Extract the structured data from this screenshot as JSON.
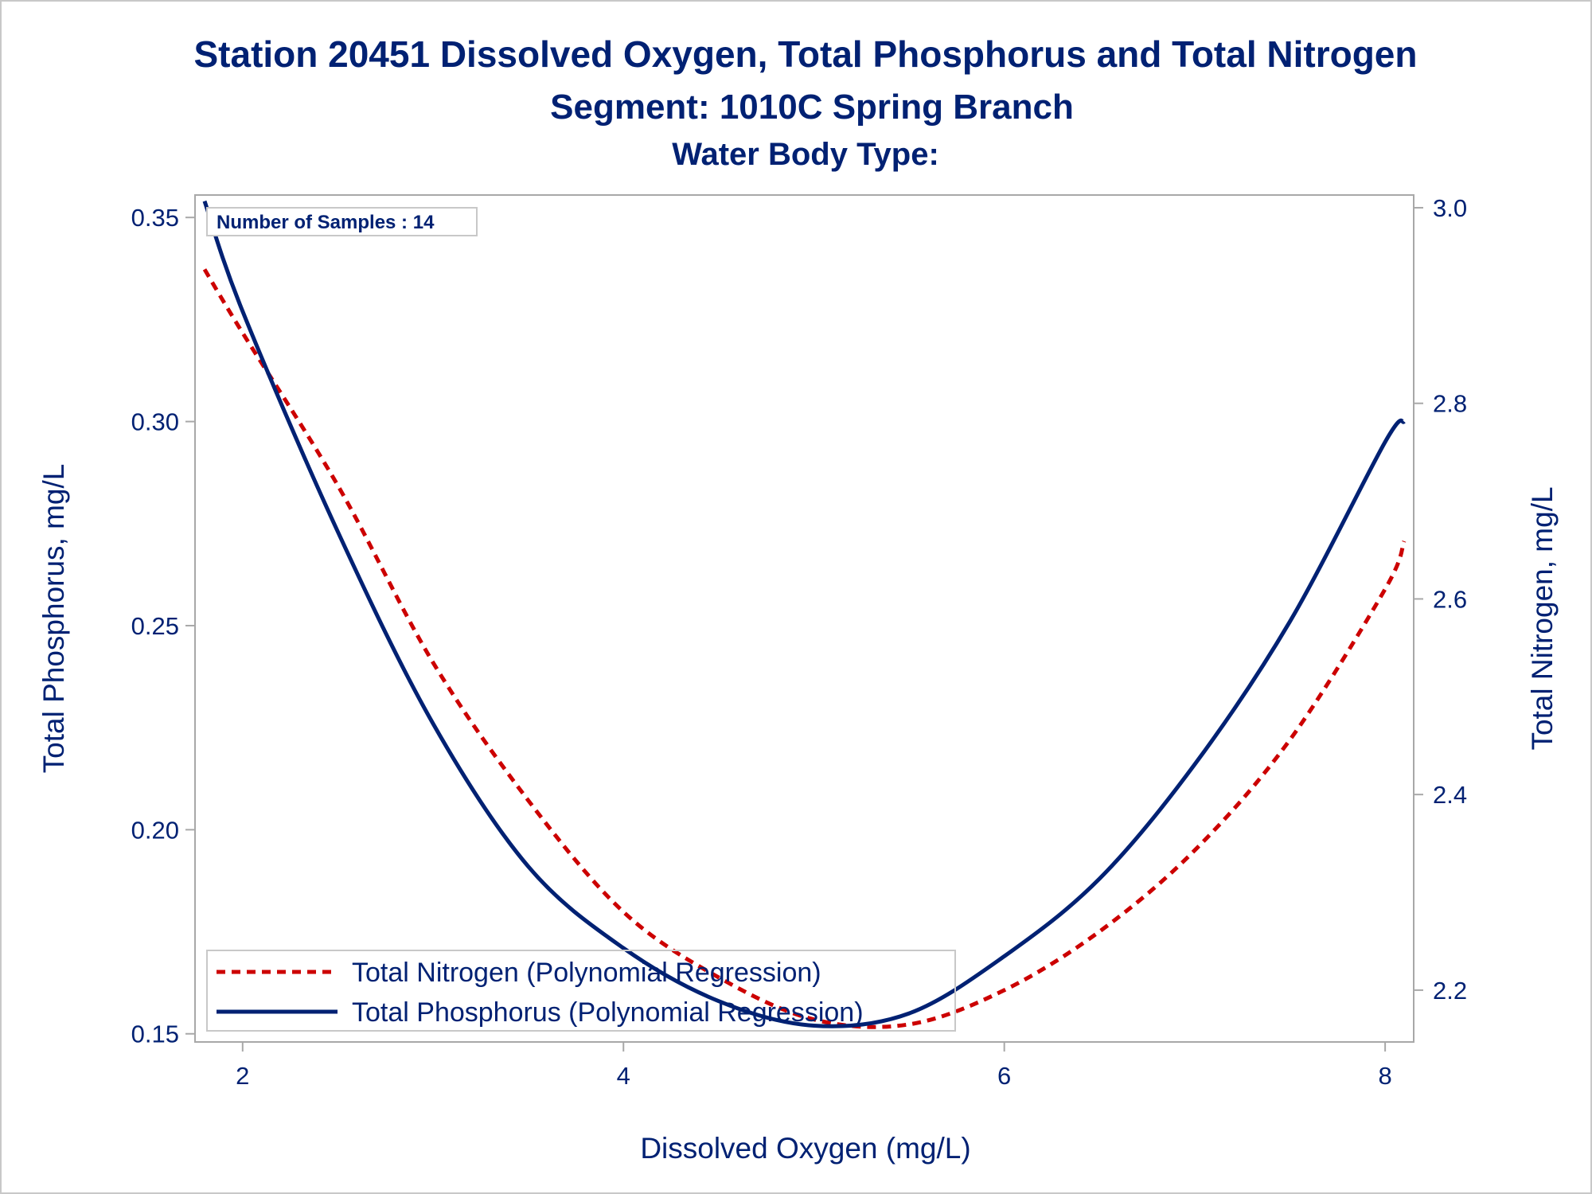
{
  "chart_data": {
    "type": "line",
    "title": "Station 20451  Dissolved Oxygen, Total Phosphorus and Total Nitrogen",
    "subtitle": "Segment: 1010C  Spring Branch",
    "subtitle2": "Water Body Type:",
    "xlabel": "Dissolved Oxygen (mg/L)",
    "ylabel": "Total Phosphorus, mg/L",
    "y2label": "Total Nitrogen, mg/L",
    "xlim": [
      1.75,
      8.15
    ],
    "ylim": [
      0.148,
      0.3555
    ],
    "y2lim": [
      2.147,
      3.013
    ],
    "xticks": [
      2,
      4,
      6,
      8
    ],
    "xtick_labels": [
      "2",
      "4",
      "6",
      "8"
    ],
    "yticks": [
      0.15,
      0.2,
      0.25,
      0.3,
      0.35
    ],
    "ytick_labels": [
      "0.15",
      "0.20",
      "0.25",
      "0.30",
      "0.35"
    ],
    "y2ticks": [
      2.2,
      2.4,
      2.6,
      2.8,
      3.0
    ],
    "y2tick_labels": [
      "2.2",
      "2.4",
      "2.6",
      "2.8",
      "3.0"
    ],
    "annotation": "Number of Samples : 14",
    "legend_position": "bottom-left inside",
    "grid": false,
    "series": [
      {
        "name": "Total Nitrogen (Polynomial Regression)",
        "axis": "right",
        "style": "dashed",
        "color": "#cc0000",
        "x": [
          1.8,
          2.0,
          2.5,
          3.0,
          3.5,
          4.0,
          4.5,
          5.0,
          5.5,
          6.0,
          6.5,
          7.0,
          7.5,
          8.0,
          8.1
        ],
        "y": [
          2.937,
          2.872,
          2.716,
          2.535,
          2.394,
          2.28,
          2.213,
          2.17,
          2.165,
          2.2,
          2.26,
          2.343,
          2.456,
          2.61,
          2.659
        ]
      },
      {
        "name": "Total Phosphorus (Polynomial Regression)",
        "axis": "left",
        "style": "solid",
        "color": "#002173",
        "x": [
          1.8,
          2.0,
          2.5,
          3.0,
          3.5,
          4.0,
          4.5,
          5.0,
          5.5,
          6.0,
          6.5,
          7.0,
          7.5,
          8.0,
          8.1
        ],
        "y": [
          0.354,
          0.327,
          0.273,
          0.226,
          0.191,
          0.171,
          0.158,
          0.152,
          0.155,
          0.169,
          0.188,
          0.216,
          0.251,
          0.295,
          0.3
        ]
      }
    ]
  }
}
